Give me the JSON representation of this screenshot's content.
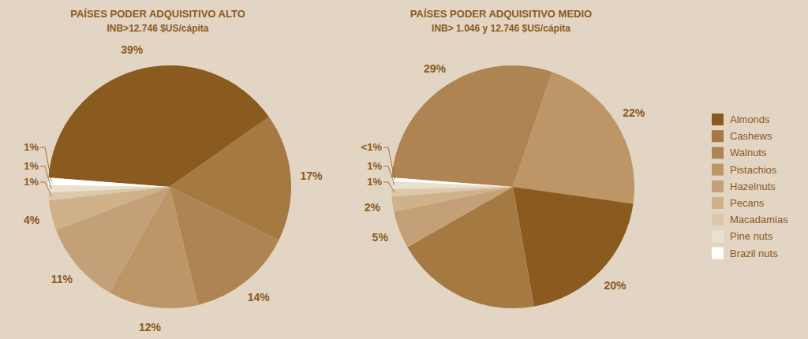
{
  "chart_data": [
    {
      "type": "pie",
      "title": "PAÍSES PODER ADQUISITIVO ALTO",
      "subtitle": "INB>12.746 $US/cápita",
      "categories": [
        "Almonds",
        "Cashews",
        "Walnuts",
        "Pistachios",
        "Hazelnuts",
        "Pecans",
        "Macadamias",
        "Pine nuts",
        "Brazil nuts"
      ],
      "values": [
        39,
        17,
        14,
        12,
        11,
        4,
        1,
        1,
        1
      ],
      "value_labels": [
        "39%",
        "17%",
        "14%",
        "12%",
        "11%",
        "4%",
        "1%",
        "1%",
        "1%"
      ],
      "colors": [
        "#8B5A1F",
        "#A57942",
        "#AE8452",
        "#BC9666",
        "#C3A077",
        "#CFB18A",
        "#DCC8AA",
        "#EAE0D0",
        "#FFFFFF"
      ],
      "data_labels": true,
      "legend": "right"
    },
    {
      "type": "pie",
      "title": "PAÍSES PODER ADQUISITIVO MEDIO",
      "subtitle": "INB> 1.046 y 12.746 $US/cápita",
      "categories": [
        "Walnuts",
        "Pistachios",
        "Almonds",
        "Cashews",
        "Hazelnuts",
        "Pecans",
        "Macadamias",
        "Pine nuts",
        "Brazil nuts"
      ],
      "values": [
        29,
        22,
        20,
        19.5,
        5,
        2,
        1,
        1,
        0.5
      ],
      "value_labels": [
        "29%",
        "22%",
        "20%",
        null,
        "5%",
        "2%",
        "1%",
        "1%",
        "<1%"
      ],
      "colors": [
        "#AE8452",
        "#BC9666",
        "#8B5A1F",
        "#A57942",
        "#C3A077",
        "#CFB18A",
        "#DCC8AA",
        "#EAE0D0",
        "#FFFFFF"
      ],
      "data_labels": true
    }
  ]
}
